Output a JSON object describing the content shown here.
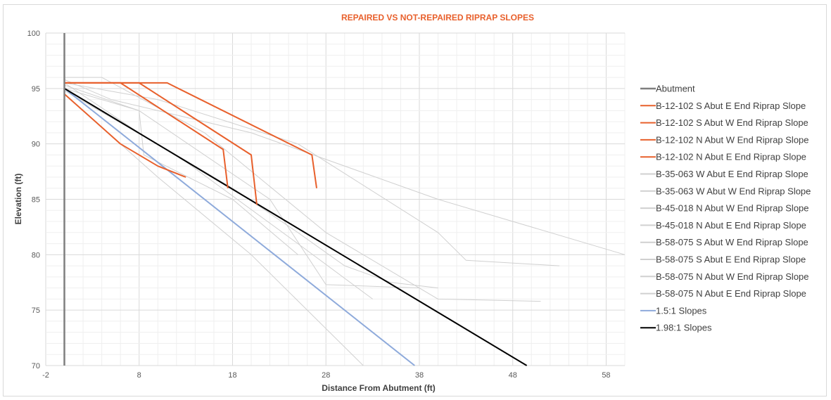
{
  "chart_data": {
    "type": "line",
    "title": "REPAIRED VS NOT-REPAIRED RIPRAP SLOPES",
    "xlabel": "Distance From Abutment (ft)",
    "ylabel": "Elevation (ft)",
    "xlim": [
      -2,
      60
    ],
    "ylim": [
      70,
      100
    ],
    "x_ticks": [
      -2,
      8,
      18,
      28,
      38,
      48,
      58
    ],
    "y_ticks": [
      70,
      75,
      80,
      85,
      90,
      95,
      100
    ],
    "grid": true,
    "legend_position": "right",
    "series": [
      {
        "name": "Abutment",
        "color": "#7f7f7f",
        "width": 2.5,
        "points": [
          [
            0,
            70
          ],
          [
            0,
            100
          ]
        ]
      },
      {
        "name": "B-12-102 S Abut E End Riprap Slope",
        "color": "#e8602c",
        "width": 2,
        "points": [
          [
            0,
            95.5
          ],
          [
            11,
            95.5
          ],
          [
            26.5,
            89
          ],
          [
            27,
            86
          ]
        ]
      },
      {
        "name": "B-12-102 S Abut W End Riprap Slope",
        "color": "#e8602c",
        "width": 2,
        "points": [
          [
            0,
            95.5
          ],
          [
            8,
            95.5
          ],
          [
            20,
            89
          ],
          [
            20.6,
            84.5
          ]
        ]
      },
      {
        "name": "B-12-102 N Abut W End Riprap Slope",
        "color": "#e8602c",
        "width": 2,
        "points": [
          [
            0,
            95.5
          ],
          [
            6,
            95.5
          ],
          [
            17,
            89.5
          ],
          [
            17.5,
            86
          ]
        ]
      },
      {
        "name": "B-12-102 N Abut E End Riprap Slope",
        "color": "#e8602c",
        "width": 2,
        "points": [
          [
            0,
            94.5
          ],
          [
            6,
            90
          ],
          [
            10,
            88
          ],
          [
            13,
            87
          ]
        ]
      },
      {
        "name": "B-35-063 W Abut E End Riprap Slope",
        "color": "#d0d0d0",
        "width": 1,
        "points": [
          [
            0,
            95.8
          ],
          [
            5,
            94
          ],
          [
            20,
            91
          ],
          [
            40,
            85
          ],
          [
            60,
            80
          ]
        ]
      },
      {
        "name": "B-35-063 W Abut W End Riprap Slope",
        "color": "#d0d0d0",
        "width": 1,
        "points": [
          [
            0,
            95.5
          ],
          [
            10,
            94
          ],
          [
            25,
            90
          ],
          [
            40,
            82
          ],
          [
            43,
            79.5
          ],
          [
            53,
            79
          ]
        ]
      },
      {
        "name": "B-45-018 N Abut W End Riprap Slope",
        "color": "#d0d0d0",
        "width": 1,
        "points": [
          [
            0,
            96
          ],
          [
            4,
            96
          ],
          [
            15,
            91
          ],
          [
            28,
            82
          ],
          [
            36,
            78
          ],
          [
            40,
            76
          ],
          [
            51,
            75.8
          ]
        ]
      },
      {
        "name": "B-45-018 N Abut E End Riprap Slope",
        "color": "#d0d0d0",
        "width": 1,
        "points": [
          [
            0,
            95.5
          ],
          [
            8,
            91
          ],
          [
            18,
            86
          ],
          [
            25,
            82
          ],
          [
            30,
            79
          ],
          [
            35,
            77.5
          ],
          [
            40,
            77
          ]
        ]
      },
      {
        "name": "B-58-075 S Abut W End Riprap Slope",
        "color": "#d0d0d0",
        "width": 1,
        "points": [
          [
            0,
            95.3
          ],
          [
            8,
            93
          ],
          [
            22,
            85
          ],
          [
            28,
            77.3
          ],
          [
            38,
            77
          ]
        ]
      },
      {
        "name": "B-58-075 S Abut E End Riprap Slope",
        "color": "#d0d0d0",
        "width": 1,
        "points": [
          [
            0,
            94.8
          ],
          [
            12,
            89
          ],
          [
            25,
            81
          ],
          [
            33,
            76
          ]
        ]
      },
      {
        "name": "B-58-075 N Abut W End Riprap Slope",
        "color": "#d0d0d0",
        "width": 1,
        "points": [
          [
            0,
            95
          ],
          [
            8,
            93
          ],
          [
            8.5,
            89
          ],
          [
            18,
            85
          ],
          [
            25,
            80
          ]
        ]
      },
      {
        "name": "B-58-075 N Abut E End Riprap Slope",
        "color": "#d0d0d0",
        "width": 1,
        "points": [
          [
            0,
            94.5
          ],
          [
            10,
            87
          ],
          [
            20,
            80
          ],
          [
            32,
            70
          ]
        ]
      },
      {
        "name": "1.5:1 Slopes",
        "color": "#8eaadb",
        "width": 2,
        "points": [
          [
            0,
            95
          ],
          [
            37.5,
            70
          ]
        ]
      },
      {
        "name": "1.98:1 Slopes",
        "color": "#000000",
        "width": 2,
        "points": [
          [
            0,
            95
          ],
          [
            49.5,
            70
          ]
        ]
      }
    ]
  }
}
